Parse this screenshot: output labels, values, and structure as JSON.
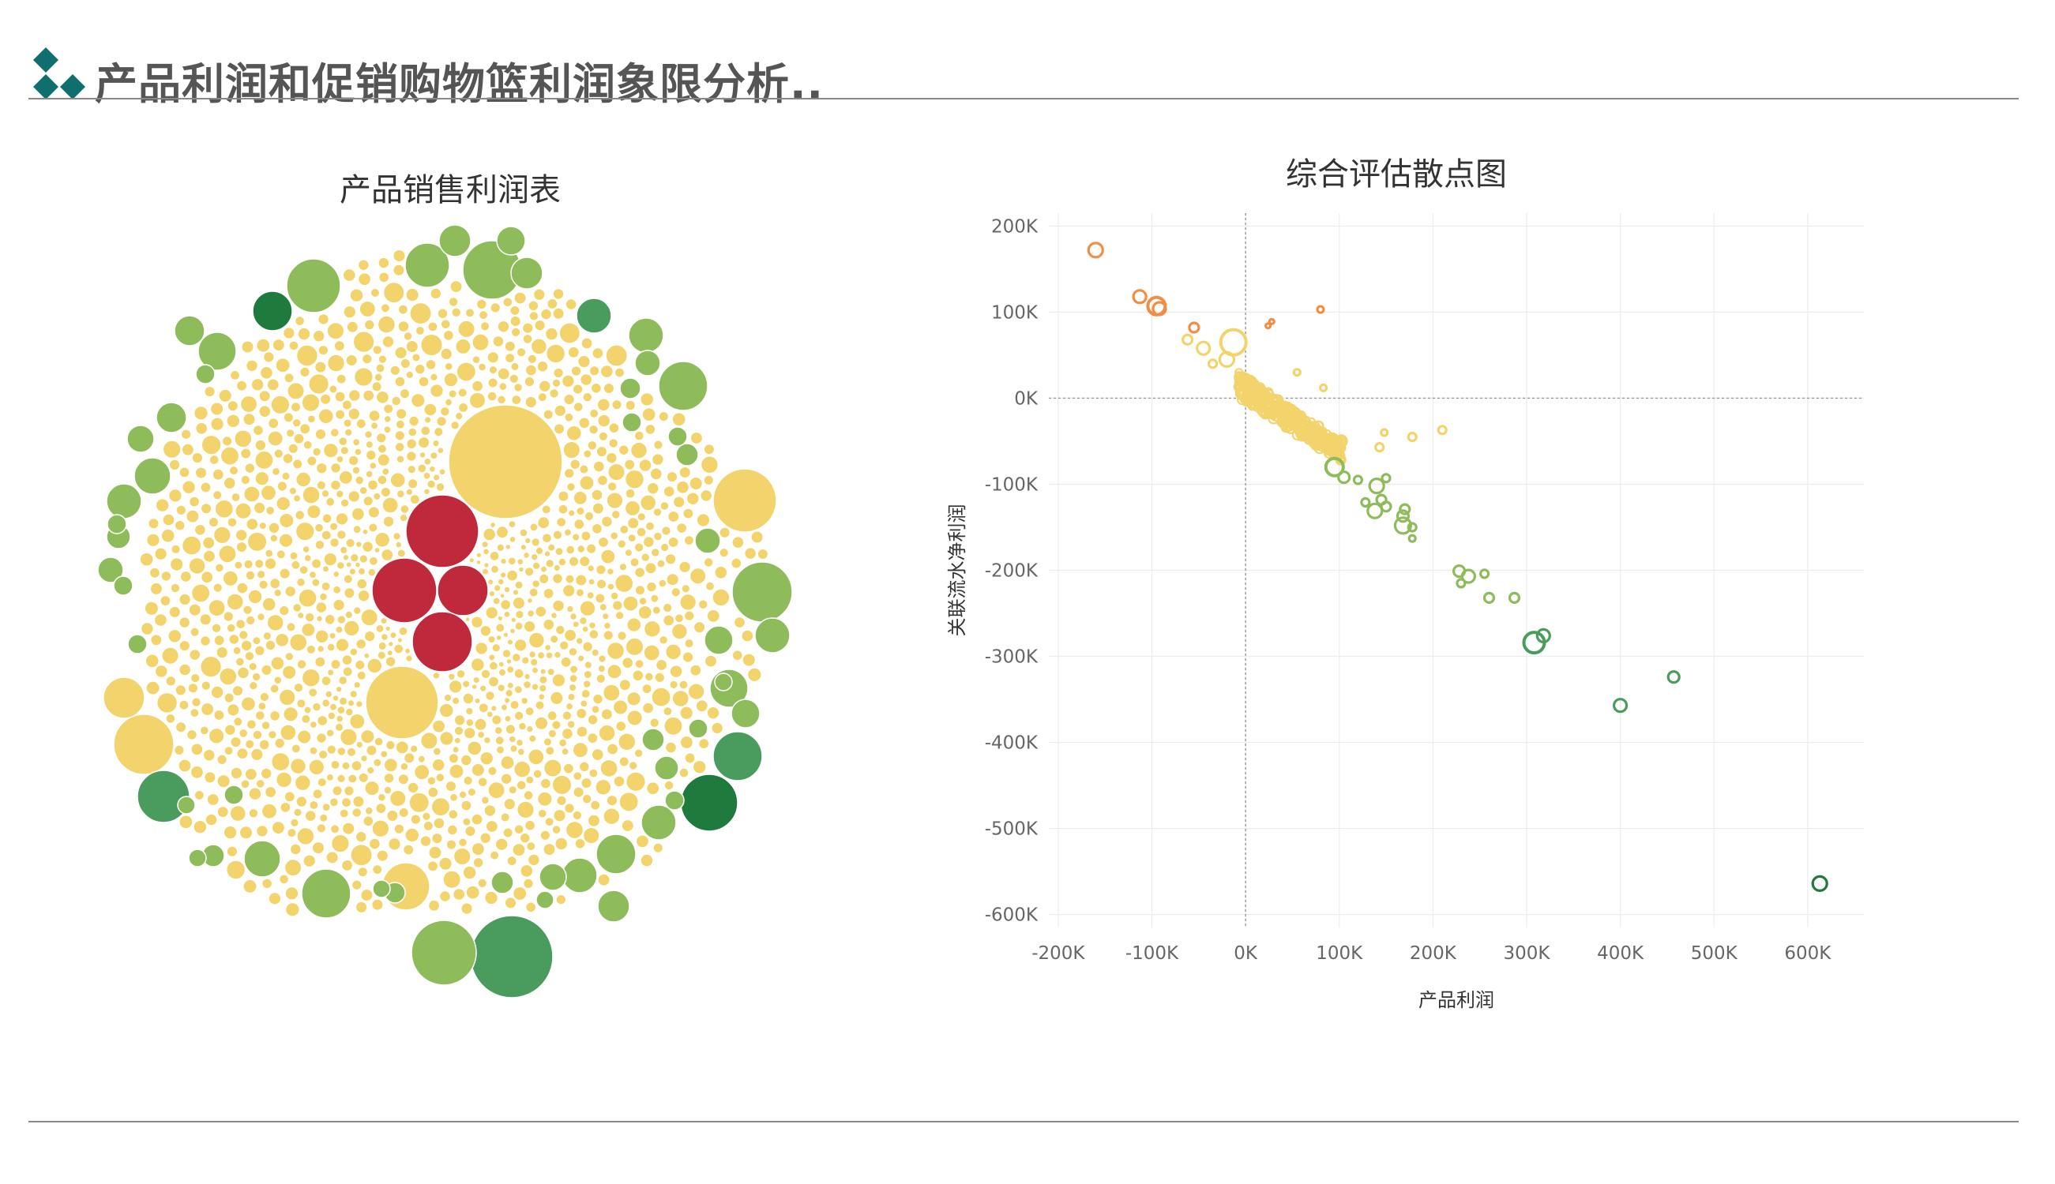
{
  "header": {
    "title": "产品利润和促销购物篮利润象限分析..",
    "logo_icon": "diamond-cluster-icon",
    "logo_color": "#0f6e6e"
  },
  "bubble_chart": {
    "title": "产品销售利润表"
  },
  "scatter_chart": {
    "title": "综合评估散点图",
    "xlabel": "产品利润",
    "ylabel": "关联流水净利润"
  },
  "colors": {
    "dark_red": "#c0283c",
    "orange": "#f28e44",
    "yellow": "#f3d36b",
    "light_green": "#8fbc5a",
    "mid_green": "#4a9c5e",
    "dark_green": "#1f7a3d"
  },
  "chart_data": [
    {
      "type": "bubble",
      "title": "产品销售利润表",
      "description_of_encoding": "circle size = sales, color = profit (red negative, yellow near zero, green positive)",
      "notable_bubbles": [
        {
          "color": "dark_red",
          "count": 4,
          "size": "large"
        },
        {
          "color": "yellow",
          "count": 4,
          "size": "very_large"
        },
        {
          "color": "dark_green",
          "count": 2,
          "size": "large"
        },
        {
          "color": "mid_green",
          "count": 4,
          "size": "large"
        },
        {
          "color": "light_green",
          "size": "medium"
        },
        {
          "color": "yellow",
          "size": "small",
          "count_estimate": 1200
        }
      ]
    },
    {
      "type": "scatter",
      "title": "综合评估散点图",
      "xlabel": "产品利润",
      "ylabel": "关联流水净利润",
      "xlim": [
        -210000,
        660000
      ],
      "ylim": [
        -615000,
        215000
      ],
      "xticks": [
        -200000,
        -100000,
        0,
        100000,
        200000,
        300000,
        400000,
        500000,
        600000
      ],
      "xtick_labels": [
        "-200K",
        "-100K",
        "0K",
        "100K",
        "200K",
        "300K",
        "400K",
        "500K",
        "600K"
      ],
      "yticks": [
        200000,
        100000,
        0,
        -100000,
        -200000,
        -300000,
        -400000,
        -500000,
        -600000
      ],
      "ytick_labels": [
        "200K",
        "100K",
        "0K",
        "-100K",
        "-200K",
        "-300K",
        "-400K",
        "-500K",
        "-600K"
      ],
      "grid": true,
      "reference_lines": {
        "x": 0,
        "y": 0
      },
      "points": [
        {
          "x": -160000,
          "y": 172000,
          "r": 9,
          "color": "orange"
        },
        {
          "x": -113000,
          "y": 118000,
          "r": 8,
          "color": "orange"
        },
        {
          "x": -95000,
          "y": 107000,
          "r": 11,
          "color": "orange"
        },
        {
          "x": -92000,
          "y": 104000,
          "r": 8,
          "color": "orange"
        },
        {
          "x": -55000,
          "y": 82000,
          "r": 6,
          "color": "orange"
        },
        {
          "x": 80000,
          "y": 103000,
          "r": 4,
          "color": "orange"
        },
        {
          "x": 28000,
          "y": 89000,
          "r": 3,
          "color": "orange"
        },
        {
          "x": 24000,
          "y": 84000,
          "r": 3,
          "color": "orange"
        },
        {
          "x": -13000,
          "y": 65000,
          "r": 16,
          "color": "yellow"
        },
        {
          "x": -20000,
          "y": 45000,
          "r": 9,
          "color": "yellow"
        },
        {
          "x": -45000,
          "y": 58000,
          "r": 8,
          "color": "yellow"
        },
        {
          "x": -62000,
          "y": 68000,
          "r": 6,
          "color": "yellow"
        },
        {
          "x": -35000,
          "y": 40000,
          "r": 5,
          "color": "yellow"
        },
        {
          "x": 55000,
          "y": 30000,
          "r": 4,
          "color": "yellow"
        },
        {
          "x": 83000,
          "y": 12000,
          "r": 4,
          "color": "yellow"
        },
        {
          "x": 210000,
          "y": -37000,
          "r": 5,
          "color": "yellow"
        },
        {
          "x": 178000,
          "y": -45000,
          "r": 5,
          "color": "yellow"
        },
        {
          "x": 148000,
          "y": -40000,
          "r": 4,
          "color": "yellow"
        },
        {
          "x": 143000,
          "y": -57000,
          "r": 5,
          "color": "yellow"
        },
        {
          "x": 102000,
          "y": -50000,
          "r": 7,
          "color": "yellow"
        },
        {
          "x": 85000,
          "y": -55000,
          "r": 5,
          "color": "yellow"
        },
        {
          "x": 95000,
          "y": -80000,
          "r": 11,
          "color": "light_green"
        },
        {
          "x": 105000,
          "y": -92000,
          "r": 7,
          "color": "light_green"
        },
        {
          "x": 120000,
          "y": -95000,
          "r": 5,
          "color": "light_green"
        },
        {
          "x": 140000,
          "y": -102000,
          "r": 9,
          "color": "light_green"
        },
        {
          "x": 150000,
          "y": -93000,
          "r": 5,
          "color": "light_green"
        },
        {
          "x": 128000,
          "y": -121000,
          "r": 5,
          "color": "light_green"
        },
        {
          "x": 145000,
          "y": -118000,
          "r": 6,
          "color": "light_green"
        },
        {
          "x": 138000,
          "y": -131000,
          "r": 9,
          "color": "light_green"
        },
        {
          "x": 150000,
          "y": -126000,
          "r": 6,
          "color": "light_green"
        },
        {
          "x": 170000,
          "y": -129000,
          "r": 6,
          "color": "light_green"
        },
        {
          "x": 168000,
          "y": -137000,
          "r": 7,
          "color": "light_green"
        },
        {
          "x": 168000,
          "y": -148000,
          "r": 10,
          "color": "light_green"
        },
        {
          "x": 178000,
          "y": -150000,
          "r": 5,
          "color": "light_green"
        },
        {
          "x": 178000,
          "y": -163000,
          "r": 4,
          "color": "light_green"
        },
        {
          "x": 228000,
          "y": -201000,
          "r": 7,
          "color": "light_green"
        },
        {
          "x": 238000,
          "y": -207000,
          "r": 8,
          "color": "light_green"
        },
        {
          "x": 230000,
          "y": -215000,
          "r": 5,
          "color": "light_green"
        },
        {
          "x": 255000,
          "y": -204000,
          "r": 5,
          "color": "light_green"
        },
        {
          "x": 260000,
          "y": -232000,
          "r": 6,
          "color": "light_green"
        },
        {
          "x": 287000,
          "y": -232000,
          "r": 6,
          "color": "light_green"
        },
        {
          "x": 308000,
          "y": -284000,
          "r": 13,
          "color": "mid_green"
        },
        {
          "x": 318000,
          "y": -276000,
          "r": 8,
          "color": "mid_green"
        },
        {
          "x": 400000,
          "y": -357000,
          "r": 8,
          "color": "mid_green"
        },
        {
          "x": 457000,
          "y": -324000,
          "r": 7,
          "color": "mid_green"
        },
        {
          "x": 613000,
          "y": -564000,
          "r": 9,
          "color": "dark_green"
        }
      ]
    }
  ]
}
